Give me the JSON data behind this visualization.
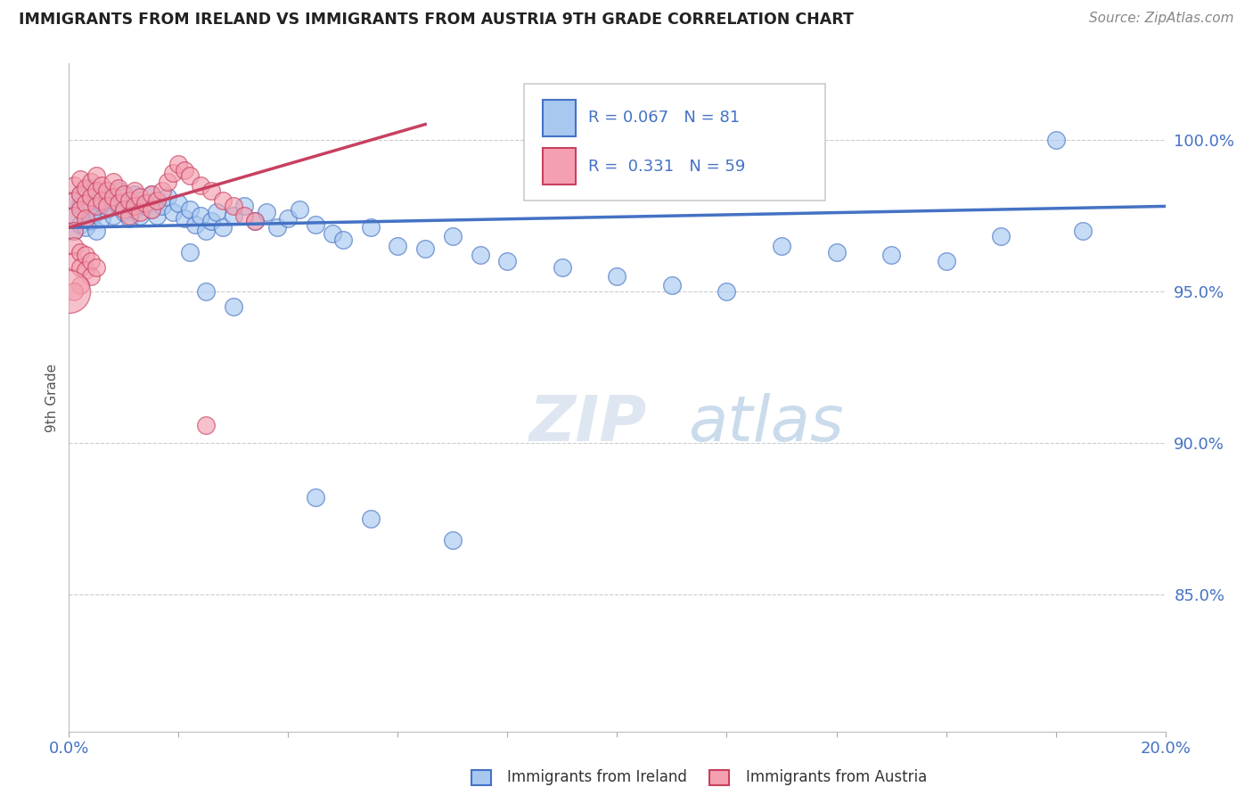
{
  "title": "IMMIGRANTS FROM IRELAND VS IMMIGRANTS FROM AUSTRIA 9TH GRADE CORRELATION CHART",
  "source": "Source: ZipAtlas.com",
  "ylabel": "9th Grade",
  "ylabel_right_labels": [
    "100.0%",
    "95.0%",
    "90.0%",
    "85.0%"
  ],
  "ylabel_right_values": [
    1.0,
    0.95,
    0.9,
    0.85
  ],
  "xmin": 0.0,
  "xmax": 0.2,
  "ymin": 0.805,
  "ymax": 1.025,
  "R_ireland": 0.067,
  "N_ireland": 81,
  "R_austria": 0.331,
  "N_austria": 59,
  "color_ireland": "#a8c8f0",
  "color_ireland_line": "#4472c4",
  "color_austria": "#f4a0b0",
  "color_austria_line": "#c84060",
  "background_color": "#ffffff",
  "ireland_x": [
    0.001,
    0.001,
    0.001,
    0.002,
    0.002,
    0.002,
    0.003,
    0.003,
    0.003,
    0.004,
    0.004,
    0.004,
    0.005,
    0.005,
    0.005,
    0.006,
    0.006,
    0.007,
    0.007,
    0.008,
    0.008,
    0.009,
    0.009,
    0.01,
    0.01,
    0.011,
    0.011,
    0.012,
    0.012,
    0.013,
    0.013,
    0.014,
    0.015,
    0.015,
    0.016,
    0.016,
    0.017,
    0.018,
    0.019,
    0.02,
    0.021,
    0.022,
    0.023,
    0.024,
    0.025,
    0.026,
    0.027,
    0.028,
    0.03,
    0.032,
    0.034,
    0.036,
    0.038,
    0.04,
    0.042,
    0.045,
    0.048,
    0.05,
    0.055,
    0.06,
    0.065,
    0.07,
    0.075,
    0.08,
    0.09,
    0.1,
    0.11,
    0.12,
    0.13,
    0.14,
    0.15,
    0.16,
    0.17,
    0.18,
    0.185,
    0.055,
    0.025,
    0.03,
    0.022,
    0.045,
    0.07
  ],
  "ireland_y": [
    0.98,
    0.975,
    0.97,
    0.982,
    0.978,
    0.972,
    0.983,
    0.977,
    0.971,
    0.984,
    0.978,
    0.973,
    0.981,
    0.976,
    0.97,
    0.979,
    0.974,
    0.982,
    0.977,
    0.98,
    0.975,
    0.983,
    0.978,
    0.981,
    0.976,
    0.979,
    0.974,
    0.982,
    0.977,
    0.98,
    0.975,
    0.978,
    0.982,
    0.977,
    0.98,
    0.975,
    0.978,
    0.981,
    0.976,
    0.979,
    0.974,
    0.977,
    0.972,
    0.975,
    0.97,
    0.973,
    0.976,
    0.971,
    0.975,
    0.978,
    0.973,
    0.976,
    0.971,
    0.974,
    0.977,
    0.972,
    0.969,
    0.967,
    0.971,
    0.965,
    0.964,
    0.968,
    0.962,
    0.96,
    0.958,
    0.955,
    0.952,
    0.95,
    0.965,
    0.963,
    0.962,
    0.96,
    0.968,
    1.0,
    0.97,
    0.875,
    0.95,
    0.945,
    0.963,
    0.882,
    0.868
  ],
  "austria_x": [
    0.001,
    0.001,
    0.001,
    0.002,
    0.002,
    0.002,
    0.003,
    0.003,
    0.003,
    0.004,
    0.004,
    0.005,
    0.005,
    0.005,
    0.006,
    0.006,
    0.007,
    0.007,
    0.008,
    0.008,
    0.009,
    0.009,
    0.01,
    0.01,
    0.011,
    0.011,
    0.012,
    0.012,
    0.013,
    0.013,
    0.014,
    0.015,
    0.015,
    0.016,
    0.017,
    0.018,
    0.019,
    0.02,
    0.021,
    0.022,
    0.024,
    0.026,
    0.028,
    0.03,
    0.032,
    0.034,
    0.001,
    0.001,
    0.001,
    0.002,
    0.002,
    0.003,
    0.003,
    0.004,
    0.004,
    0.005,
    0.002,
    0.001,
    0.025
  ],
  "austria_y": [
    0.985,
    0.98,
    0.975,
    0.987,
    0.982,
    0.977,
    0.984,
    0.979,
    0.974,
    0.986,
    0.981,
    0.988,
    0.983,
    0.978,
    0.985,
    0.98,
    0.983,
    0.978,
    0.986,
    0.981,
    0.984,
    0.979,
    0.982,
    0.977,
    0.98,
    0.975,
    0.983,
    0.978,
    0.981,
    0.976,
    0.979,
    0.982,
    0.977,
    0.98,
    0.983,
    0.986,
    0.989,
    0.992,
    0.99,
    0.988,
    0.985,
    0.983,
    0.98,
    0.978,
    0.975,
    0.973,
    0.97,
    0.965,
    0.96,
    0.963,
    0.958,
    0.962,
    0.957,
    0.96,
    0.955,
    0.958,
    0.952,
    0.95,
    0.906
  ],
  "austria_large_x": [
    0.0
  ],
  "austria_large_y": [
    0.95
  ],
  "legend_R_ireland_text": "R = 0.067",
  "legend_N_ireland_text": "N = 81",
  "legend_R_austria_text": "R =  0.331",
  "legend_N_austria_text": "N = 59"
}
